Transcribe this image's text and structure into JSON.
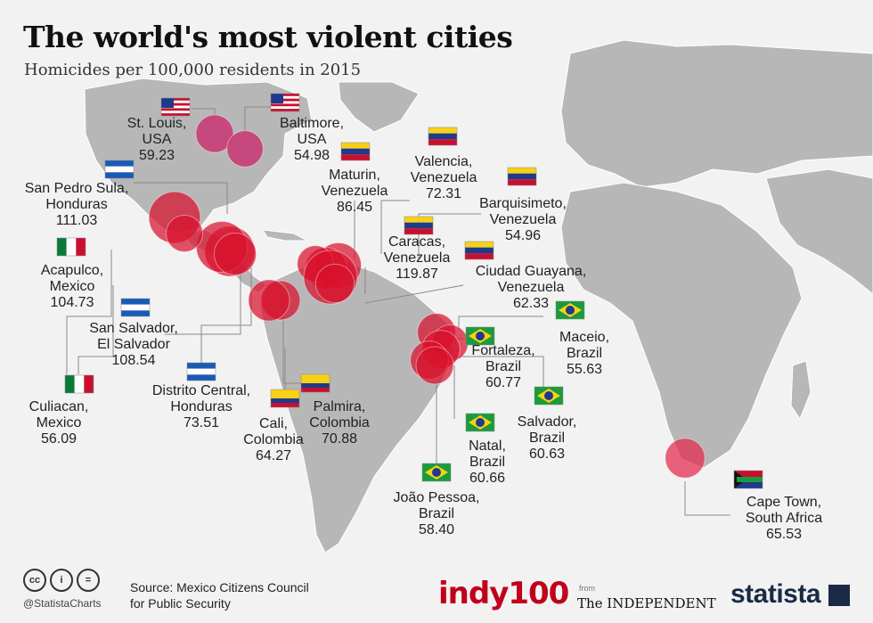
{
  "header": {
    "title": "The world's most violent cities",
    "subtitle": "Homicides per 100,000 residents in 2015"
  },
  "chart_data": {
    "type": "bubble-map",
    "title": "The world's most violent cities",
    "subtitle": "Homicides per 100,000 residents in 2015",
    "colors": {
      "usa": "#c83d78",
      "latam": "#d8102c",
      "africa": "#e0284a",
      "land": "#b5b5b5",
      "map_bg": "#f2f2f2"
    },
    "cities": [
      {
        "name": "St. Louis,",
        "country": "USA",
        "value": 59.23,
        "value_label": "59.23",
        "flag": "usa-flag"
      },
      {
        "name": "Baltimore,",
        "country": "USA",
        "value": 54.98,
        "value_label": "54.98",
        "flag": "usa-flag"
      },
      {
        "name": "San Pedro Sula,",
        "country": "Honduras",
        "value": 111.03,
        "value_label": "111.03",
        "flag": "honduras-flag"
      },
      {
        "name": "Acapulco,",
        "country": "Mexico",
        "value": 104.73,
        "value_label": "104.73",
        "flag": "mexico-flag"
      },
      {
        "name": "San Salvador,",
        "country": "El Salvador",
        "value": 108.54,
        "value_label": "108.54",
        "flag": "el-salvador-flag"
      },
      {
        "name": "Culiacan,",
        "country": "Mexico",
        "value": 56.09,
        "value_label": "56.09",
        "flag": "mexico-flag"
      },
      {
        "name": "Distrito Central,",
        "country": "Honduras",
        "value": 73.51,
        "value_label": "73.51",
        "flag": "honduras-flag"
      },
      {
        "name": "Maturin,",
        "country": "Venezuela",
        "value": 86.45,
        "value_label": "86.45",
        "flag": "venezuela-flag"
      },
      {
        "name": "Valencia,",
        "country": "Venezuela",
        "value": 72.31,
        "value_label": "72.31",
        "flag": "venezuela-flag"
      },
      {
        "name": "Barquisimeto,",
        "country": "Venezuela",
        "value": 54.96,
        "value_label": "54.96",
        "flag": "venezuela-flag"
      },
      {
        "name": "Caracas,",
        "country": "Venezuela",
        "value": 119.87,
        "value_label": "119.87",
        "flag": "venezuela-flag"
      },
      {
        "name": "Ciudad Guayana,",
        "country": "Venezuela",
        "value": 62.33,
        "value_label": "62.33",
        "flag": "venezuela-flag"
      },
      {
        "name": "Cali,",
        "country": "Colombia",
        "value": 64.27,
        "value_label": "64.27",
        "flag": "colombia-flag"
      },
      {
        "name": "Palmira,",
        "country": "Colombia",
        "value": 70.88,
        "value_label": "70.88",
        "flag": "colombia-flag"
      },
      {
        "name": "Fortaleza,",
        "country": "Brazil",
        "value": 60.77,
        "value_label": "60.77",
        "flag": "brazil-flag"
      },
      {
        "name": "Maceio,",
        "country": "Brazil",
        "value": 55.63,
        "value_label": "55.63",
        "flag": "brazil-flag"
      },
      {
        "name": "Salvador,",
        "country": "Brazil",
        "value": 60.63,
        "value_label": "60.63",
        "flag": "brazil-flag"
      },
      {
        "name": "Natal,",
        "country": "Brazil",
        "value": 60.66,
        "value_label": "60.66",
        "flag": "brazil-flag"
      },
      {
        "name": "João Pessoa,",
        "country": "Brazil",
        "value": 58.4,
        "value_label": "58.40",
        "flag": "brazil-flag"
      },
      {
        "name": "Cape Town,",
        "country": "South Africa",
        "value": 65.53,
        "value_label": "65.53",
        "flag": "south-africa-flag"
      }
    ]
  },
  "footer": {
    "source_line1": "Source: Mexico Citizens Council",
    "source_line2": "for Public Security",
    "handle": "@StatistaCharts",
    "cc_icons": [
      "cc",
      "i",
      "="
    ],
    "indy": "indy100",
    "from": "from",
    "independent": "The INDEPENDENT",
    "statista": "statista"
  }
}
